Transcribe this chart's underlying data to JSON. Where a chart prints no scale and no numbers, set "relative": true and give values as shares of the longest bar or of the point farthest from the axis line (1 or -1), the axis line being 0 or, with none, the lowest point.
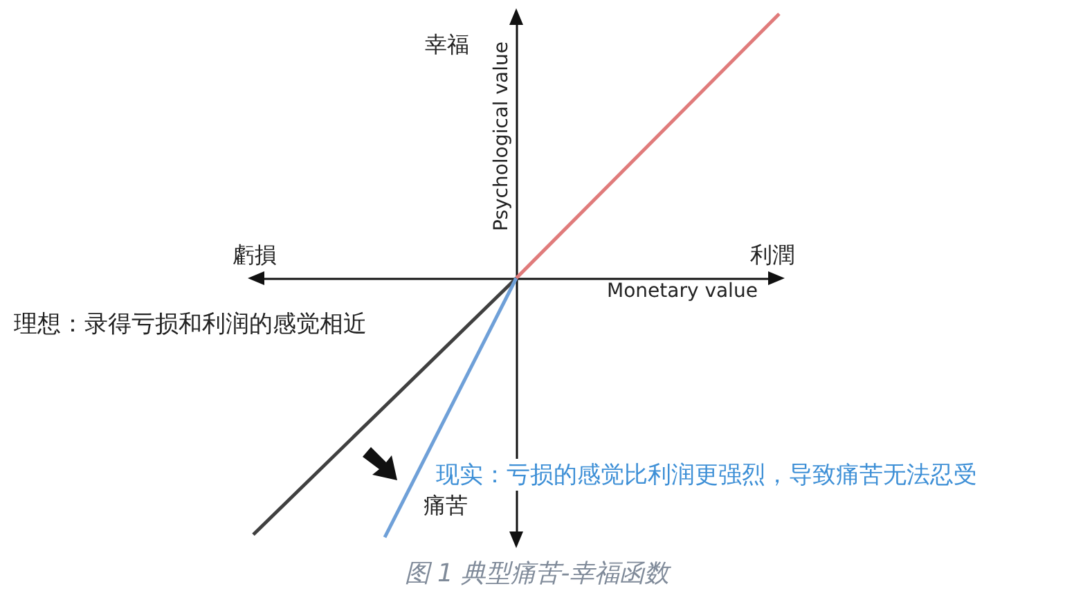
{
  "chart_data": {
    "type": "line",
    "relative": true,
    "title": "图 1 典型痛苦-幸福函数",
    "xlabel": "Monetary value",
    "ylabel": "Psychological value",
    "grid": false,
    "marker": "none",
    "line_style": "solid",
    "annotations": [
      "幸福",
      "虧損",
      "利潤",
      "痛苦",
      "理想：录得亏损和利润的感觉相近",
      "现实：亏损的感觉比利润更强烈，导致痛苦无法忍受"
    ],
    "categories": [
      null,
      null,
      null,
      null,
      null
    ],
    "series": [
      {
        "color": "#e07b7b",
        "values": [
          null,
          null,
          0,
          0.5,
          1
        ]
      },
      {
        "color": "#404040",
        "values": [
          -0.97,
          -0.485,
          0,
          null,
          null
        ]
      },
      {
        "color": "#6fa0d8",
        "values": [
          null,
          -0.98,
          0,
          null,
          null
        ]
      }
    ]
  }
}
